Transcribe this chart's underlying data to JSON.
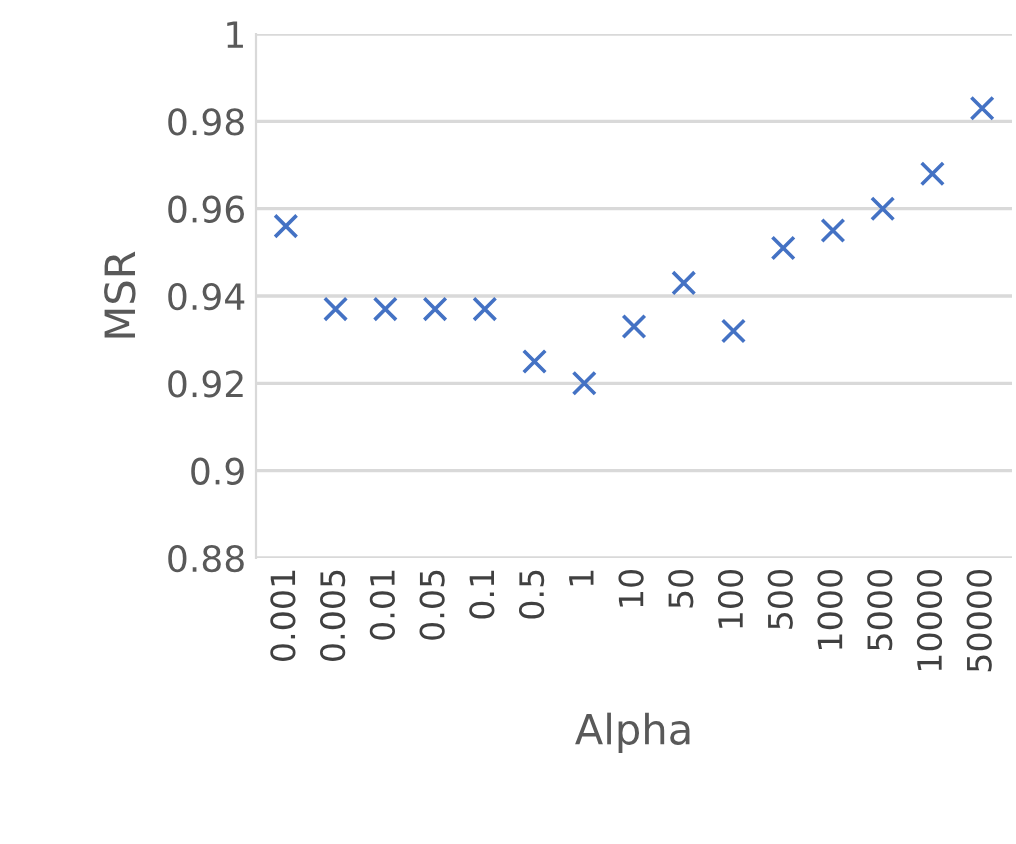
{
  "chart_data": {
    "type": "scatter",
    "xlabel": "Alpha",
    "ylabel": "MSR",
    "categories": [
      "0.001",
      "0.005",
      "0.01",
      "0.05",
      "0.1",
      "0.5",
      "1",
      "10",
      "50",
      "100",
      "500",
      "1000",
      "5000",
      "10000",
      "50000"
    ],
    "series": [
      {
        "color": "#4472c4",
        "values": [
          0.956,
          0.937,
          0.937,
          0.937,
          0.937,
          0.925,
          0.92,
          0.933,
          0.943,
          0.932,
          0.951,
          0.955,
          0.96,
          0.968,
          0.983
        ]
      }
    ],
    "ylim": [
      0.88,
      1
    ],
    "yticks": [
      0.88,
      0.9,
      0.92,
      0.94,
      0.96,
      0.98,
      1
    ],
    "grid": "y",
    "marker": "cross",
    "legend": false
  }
}
